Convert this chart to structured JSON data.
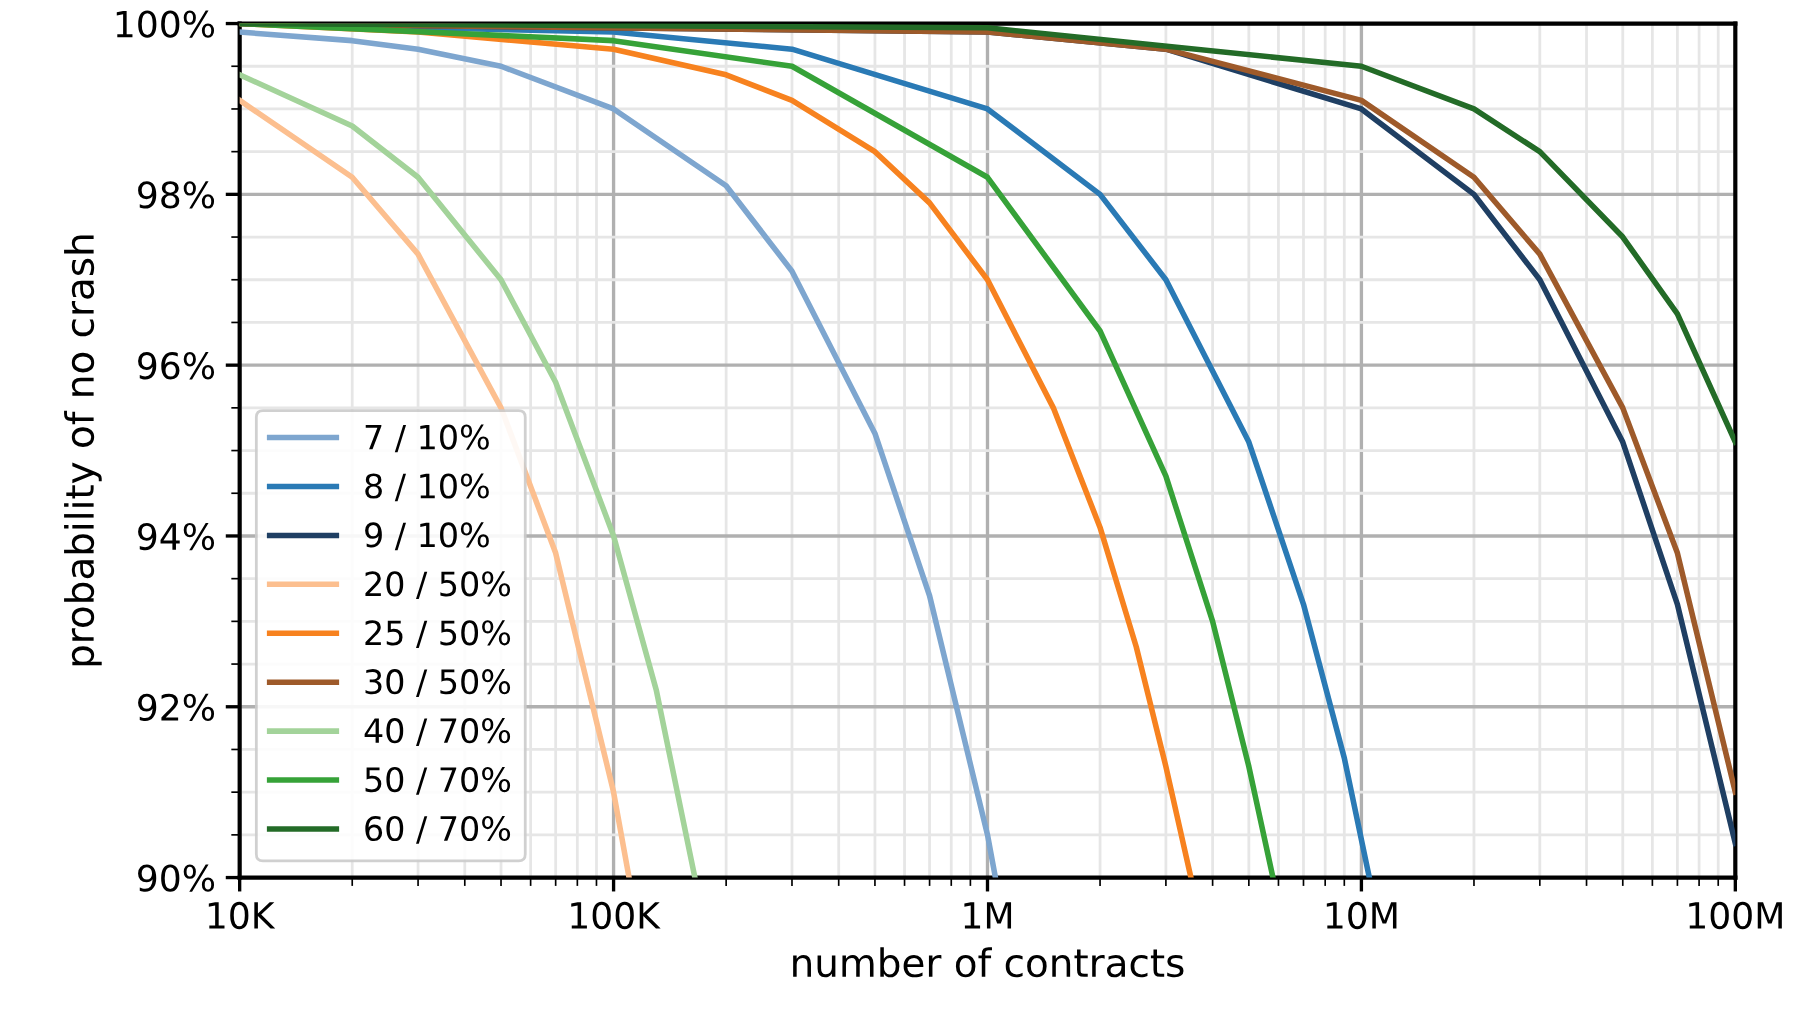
{
  "chart_data": {
    "type": "line",
    "xlabel": "number of contracts",
    "ylabel": "probability of no crash",
    "log": "x",
    "xlim": [
      10000,
      100000000
    ],
    "xticks": [
      {
        "value": 10000,
        "label": "10K"
      },
      {
        "value": 100000,
        "label": "100K"
      },
      {
        "value": 1000000,
        "label": "1M"
      },
      {
        "value": 10000000,
        "label": "10M"
      },
      {
        "value": 100000000,
        "label": "100M"
      }
    ],
    "ylim": [
      90,
      100
    ],
    "yticks": [
      {
        "value": 90,
        "label": "90%"
      },
      {
        "value": 92,
        "label": "92%"
      },
      {
        "value": 94,
        "label": "94%"
      },
      {
        "value": 96,
        "label": "96%"
      },
      {
        "value": 98,
        "label": "98%"
      },
      {
        "value": 100,
        "label": "100%"
      }
    ],
    "grid": true,
    "legend": "bottom left",
    "marker": "none",
    "line_style": "solid",
    "series": [
      {
        "name": "7 / 10%",
        "color": "#7ea6cf",
        "x": [
          10000,
          20000,
          30000,
          50000,
          100000,
          200000,
          300000,
          500000,
          700000,
          1000000,
          1050000
        ],
        "values": [
          99.9,
          99.8,
          99.7,
          99.5,
          99.0,
          98.1,
          97.1,
          95.2,
          93.3,
          90.5,
          90.0
        ]
      },
      {
        "name": "8 / 10%",
        "color": "#2a7ab5",
        "x": [
          10000,
          100000,
          300000,
          1000000,
          2000000,
          3000000,
          5000000,
          7000000,
          9000000,
          10500000
        ],
        "values": [
          100.0,
          99.9,
          99.7,
          99.0,
          98.0,
          97.0,
          95.1,
          93.2,
          91.4,
          90.0
        ]
      },
      {
        "name": "9 / 10%",
        "color": "#1f3f63",
        "x": [
          10000,
          1000000,
          3000000,
          10000000,
          20000000,
          30000000,
          50000000,
          70000000,
          100000000
        ],
        "values": [
          100.0,
          99.9,
          99.7,
          99.0,
          98.0,
          97.0,
          95.1,
          93.2,
          90.4
        ]
      },
      {
        "name": "20 / 50%",
        "color": "#fcbf8f",
        "x": [
          10000,
          20000,
          30000,
          50000,
          70000,
          100000,
          110000
        ],
        "values": [
          99.1,
          98.2,
          97.3,
          95.5,
          93.8,
          91.0,
          90.0
        ]
      },
      {
        "name": "25 / 50%",
        "color": "#f7821f",
        "x": [
          10000,
          30000,
          100000,
          200000,
          300000,
          500000,
          700000,
          1000000,
          1500000,
          2000000,
          2500000,
          3000000,
          3500000
        ],
        "values": [
          100.0,
          99.9,
          99.7,
          99.4,
          99.1,
          98.5,
          97.9,
          97.0,
          95.5,
          94.1,
          92.7,
          91.3,
          90.0
        ]
      },
      {
        "name": "30 / 50%",
        "color": "#9e5a2a",
        "x": [
          10000,
          1000000,
          3000000,
          10000000,
          20000000,
          30000000,
          50000000,
          70000000,
          100000000
        ],
        "values": [
          100.0,
          99.9,
          99.7,
          99.1,
          98.2,
          97.3,
          95.5,
          93.8,
          91.0
        ]
      },
      {
        "name": "40 / 70%",
        "color": "#a3d39a",
        "x": [
          10000,
          20000,
          30000,
          50000,
          70000,
          100000,
          130000,
          165000
        ],
        "values": [
          99.4,
          98.8,
          98.2,
          97.0,
          95.8,
          94.0,
          92.2,
          90.0
        ]
      },
      {
        "name": "50 / 70%",
        "color": "#36a238",
        "x": [
          10000,
          100000,
          300000,
          1000000,
          2000000,
          3000000,
          4000000,
          5000000,
          5800000
        ],
        "values": [
          100.0,
          99.8,
          99.5,
          98.2,
          96.4,
          94.7,
          93.0,
          91.3,
          90.0
        ]
      },
      {
        "name": "60 / 70%",
        "color": "#236b27",
        "x": [
          10000,
          1000000,
          10000000,
          20000000,
          30000000,
          50000000,
          70000000,
          100000000
        ],
        "values": [
          100.0,
          99.95,
          99.5,
          99.0,
          98.5,
          97.5,
          96.6,
          95.1
        ]
      }
    ]
  }
}
